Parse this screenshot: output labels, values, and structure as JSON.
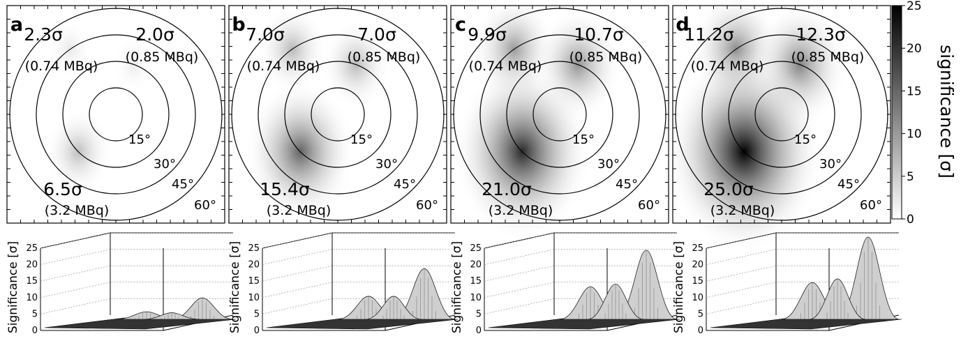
{
  "chart_data": [
    {
      "type": "heatmap",
      "panel": "a",
      "sources": [
        {
          "significance": "2.3σ",
          "activity": "(0.74 MBq)",
          "value": 2.3,
          "angle_deg": 125,
          "radius_deg": 45
        },
        {
          "significance": "2.0σ",
          "activity": "(0.85 MBq)",
          "value": 2.0,
          "angle_deg": 70,
          "radius_deg": 30
        },
        {
          "significance": "6.5σ",
          "activity": "(3.2 MBq)",
          "value": 6.5,
          "angle_deg": 225,
          "radius_deg": 30
        }
      ],
      "angle_labels": [
        "15°",
        "30°",
        "45°",
        "60°"
      ],
      "peak": 6.5
    },
    {
      "type": "heatmap",
      "panel": "b",
      "sources": [
        {
          "significance": "7.0σ",
          "activity": "(0.74 MBq)",
          "value": 7.0,
          "angle_deg": 125,
          "radius_deg": 45
        },
        {
          "significance": "7.0σ",
          "activity": "(0.85 MBq)",
          "value": 7.0,
          "angle_deg": 70,
          "radius_deg": 30
        },
        {
          "significance": "15.4σ",
          "activity": "(3.2 MBq)",
          "value": 15.4,
          "angle_deg": 225,
          "radius_deg": 30
        }
      ],
      "angle_labels": [
        "15°",
        "30°",
        "45°",
        "60°"
      ],
      "peak": 15.4
    },
    {
      "type": "heatmap",
      "panel": "c",
      "sources": [
        {
          "significance": "9.9σ",
          "activity": "(0.74 MBq)",
          "value": 9.9,
          "angle_deg": 125,
          "radius_deg": 45
        },
        {
          "significance": "10.7σ",
          "activity": "(0.85 MBq)",
          "value": 10.7,
          "angle_deg": 70,
          "radius_deg": 30
        },
        {
          "significance": "21.0σ",
          "activity": "(3.2 MBq)",
          "value": 21.0,
          "angle_deg": 225,
          "radius_deg": 30
        }
      ],
      "angle_labels": [
        "15°",
        "30°",
        "45°",
        "60°"
      ],
      "peak": 21.0
    },
    {
      "type": "heatmap",
      "panel": "d",
      "sources": [
        {
          "significance": "11.2σ",
          "activity": "(0.74 MBq)",
          "value": 11.2,
          "angle_deg": 125,
          "radius_deg": 45
        },
        {
          "significance": "12.3σ",
          "activity": "(0.85 MBq)",
          "value": 12.3,
          "angle_deg": 70,
          "radius_deg": 30
        },
        {
          "significance": "25.0σ",
          "activity": "(3.2 MBq)",
          "value": 25.0,
          "angle_deg": 225,
          "radius_deg": 30
        }
      ],
      "angle_labels": [
        "15°",
        "30°",
        "45°",
        "60°"
      ],
      "peak": 25.0
    }
  ],
  "colorbar": {
    "title": "significance [σ]",
    "ticks": [
      "25",
      "20",
      "15",
      "10",
      "5",
      "0"
    ],
    "min": 0,
    "max": 25
  },
  "surface_plots": {
    "ylabel": "Significance [σ]",
    "zticks": [
      "25",
      "20",
      "15",
      "10",
      "5",
      "0"
    ],
    "zlim": [
      0,
      25
    ]
  },
  "colors": {
    "low": "#ffffff",
    "high": "#000000",
    "line": "#000000"
  }
}
